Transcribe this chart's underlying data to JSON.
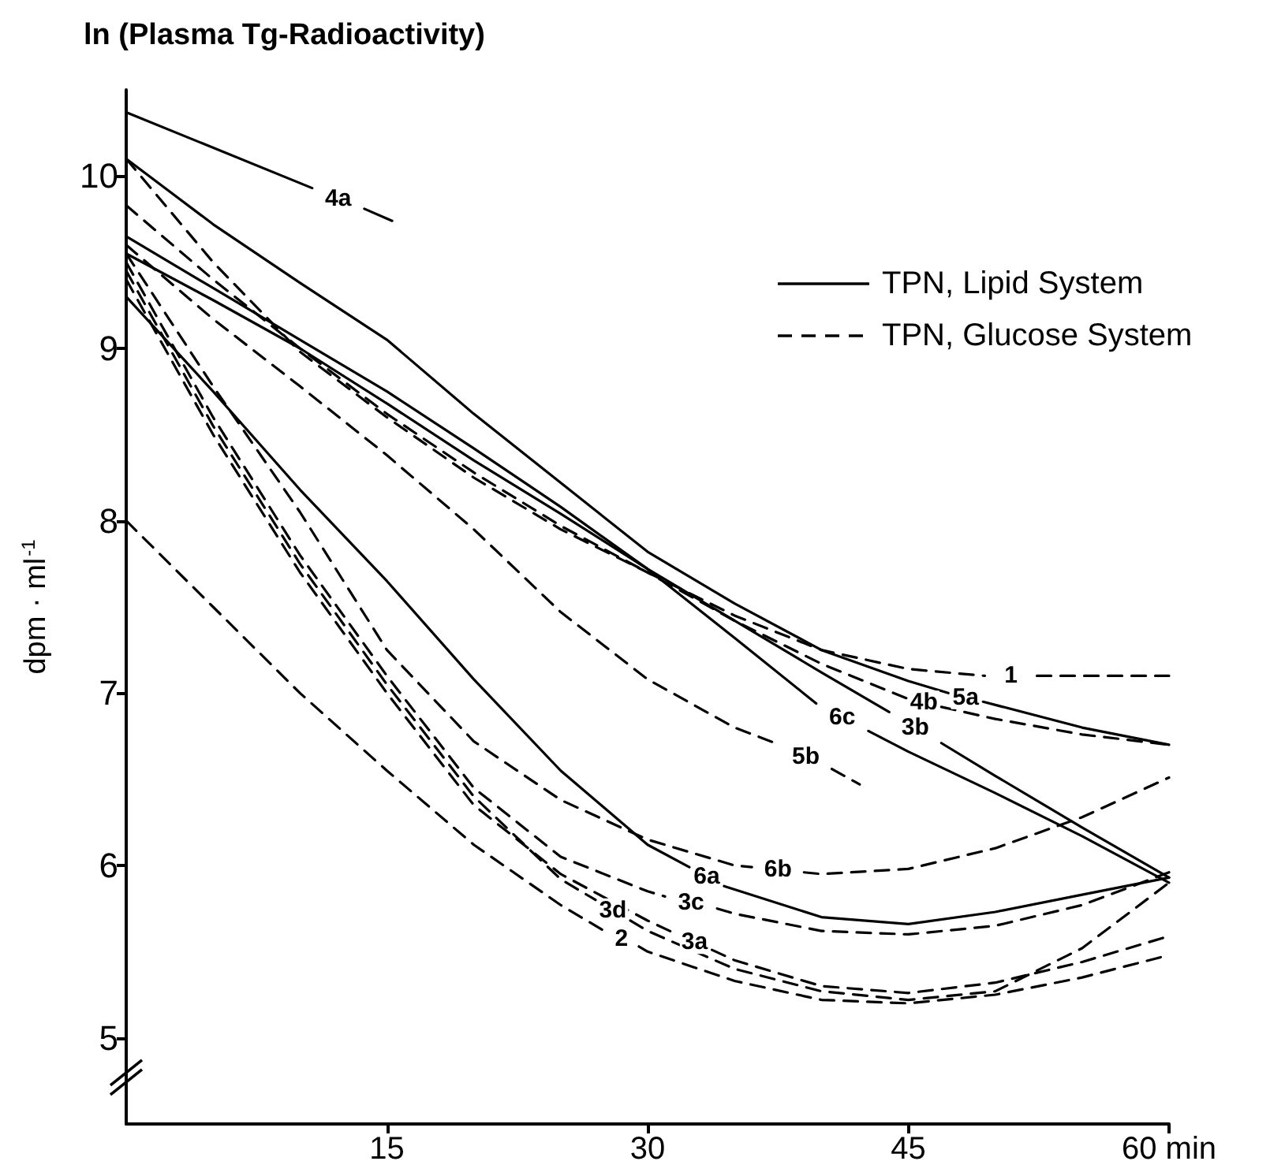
{
  "chart_data": {
    "type": "line",
    "title": "ln (Plasma Tg-Radioactivity)",
    "ylabel": "dpm · ml$^{-1}$",
    "xlim": [
      0,
      60
    ],
    "xticks": [
      15,
      30,
      45,
      {
        "value": 60,
        "label": "60 min"
      }
    ],
    "ylim": [
      4.5,
      10.5
    ],
    "yticks": [
      5,
      6,
      7,
      8,
      9,
      10
    ],
    "legend": "top right",
    "marker": "none",
    "series": [
      {
        "name": "4a",
        "color": "#000000",
        "line_style": "solid",
        "x": [
          0,
          10.7,
          12.2,
          13.7,
          15.3
        ],
        "values": [
          10.37,
          9.93,
          null,
          9.81,
          9.74
        ]
      },
      {
        "name": "5a",
        "color": "#000000",
        "line_style": "solid",
        "x": [
          0,
          5,
          10,
          15,
          20,
          25,
          30,
          35,
          40,
          45,
          47.3,
          48.3,
          49.3,
          55,
          60
        ],
        "values": [
          10.1,
          9.72,
          9.38,
          9.05,
          8.62,
          8.22,
          7.82,
          7.52,
          7.25,
          7.07,
          7.0,
          null,
          6.95,
          6.8,
          6.7
        ]
      },
      {
        "name": "4b",
        "color": "#000000",
        "line_style": "dashed",
        "x": [
          0,
          5,
          10,
          15,
          20,
          25,
          30,
          35,
          40,
          44.9,
          45.9,
          46.9,
          50,
          55,
          60
        ],
        "values": [
          10.1,
          9.5,
          8.98,
          8.6,
          8.25,
          7.95,
          7.7,
          7.42,
          7.17,
          6.97,
          null,
          6.92,
          6.85,
          6.76,
          6.7
        ]
      },
      {
        "name": "1",
        "color": "#000000",
        "line_style": "dashed",
        "x": [
          0,
          5,
          10,
          15,
          20,
          25,
          30,
          35,
          40,
          45,
          49.4,
          50.9,
          52.4,
          55,
          60
        ],
        "values": [
          9.83,
          9.4,
          9.0,
          8.62,
          8.28,
          7.97,
          7.7,
          7.45,
          7.25,
          7.14,
          7.1,
          null,
          7.1,
          7.1,
          7.1
        ]
      },
      {
        "name": "6c",
        "color": "#000000",
        "line_style": "solid",
        "x": [
          0,
          5,
          10,
          15,
          20,
          25,
          30,
          35,
          39.7,
          41.2,
          42.7,
          45,
          50,
          55,
          60
        ],
        "values": [
          9.65,
          9.35,
          9.05,
          8.75,
          8.42,
          8.08,
          7.72,
          7.32,
          6.94,
          null,
          6.78,
          6.66,
          6.42,
          6.17,
          5.9
        ]
      },
      {
        "name": "3b",
        "color": "#000000",
        "line_style": "solid",
        "x": [
          0,
          5,
          10,
          15,
          20,
          25,
          30,
          35,
          40,
          43.9,
          45.4,
          46.9,
          50,
          55,
          60
        ],
        "values": [
          9.55,
          9.28,
          9.0,
          8.68,
          8.35,
          8.04,
          7.72,
          7.42,
          7.12,
          6.89,
          null,
          6.71,
          6.52,
          6.22,
          5.93
        ]
      },
      {
        "name": "5b",
        "color": "#000000",
        "line_style": "dashed",
        "x": [
          0,
          5,
          10,
          15,
          20,
          25,
          30,
          35,
          37.6,
          39.1,
          40.6,
          42.2
        ],
        "values": [
          9.6,
          9.17,
          8.78,
          8.38,
          7.95,
          7.47,
          7.08,
          6.8,
          6.7,
          null,
          6.56,
          6.47
        ]
      },
      {
        "name": "6a",
        "color": "#000000",
        "line_style": "solid",
        "x": [
          0,
          5,
          10,
          15,
          20,
          25,
          30,
          32.4,
          33.4,
          34.4,
          40,
          45,
          50,
          55,
          60
        ],
        "values": [
          9.3,
          8.75,
          8.18,
          7.65,
          7.08,
          6.55,
          6.12,
          5.99,
          null,
          5.88,
          5.7,
          5.66,
          5.73,
          5.83,
          5.93
        ]
      },
      {
        "name": "6b",
        "color": "#000000",
        "line_style": "dashed",
        "x": [
          0,
          5,
          10,
          15,
          20,
          25,
          30,
          35,
          36,
          37.5,
          39,
          40,
          45,
          50,
          55,
          60
        ],
        "values": [
          9.55,
          8.78,
          8.05,
          7.25,
          6.72,
          6.38,
          6.15,
          6.0,
          5.99,
          null,
          5.96,
          5.95,
          5.98,
          6.1,
          6.28,
          6.51
        ]
      },
      {
        "name": "3c",
        "color": "#000000",
        "line_style": "dashed",
        "x": [
          0,
          5,
          10,
          15,
          20,
          25,
          30,
          31,
          32.5,
          34,
          35,
          40,
          45,
          50,
          55,
          60
        ],
        "values": [
          9.5,
          8.6,
          7.8,
          7.1,
          6.45,
          6.05,
          5.85,
          5.82,
          null,
          5.75,
          5.72,
          5.62,
          5.6,
          5.65,
          5.77,
          5.96
        ]
      },
      {
        "name": "3d",
        "color": "#000000",
        "line_style": "dashed",
        "x": [
          0,
          5,
          10,
          15,
          20,
          25,
          27,
          28,
          29,
          30,
          35,
          40,
          45,
          50,
          55,
          60
        ],
        "values": [
          9.45,
          8.55,
          7.75,
          7.05,
          6.4,
          5.92,
          5.8,
          null,
          5.68,
          5.62,
          5.4,
          5.27,
          5.22,
          5.27,
          5.52,
          5.9
        ]
      },
      {
        "name": "3a",
        "color": "#000000",
        "line_style": "dashed",
        "x": [
          0,
          5,
          10,
          15,
          20,
          25,
          30,
          31.7,
          32.7,
          33.7,
          35,
          40,
          45,
          50,
          55,
          60
        ],
        "values": [
          9.4,
          8.5,
          7.7,
          7.0,
          6.35,
          5.95,
          5.68,
          5.6,
          null,
          5.51,
          5.45,
          5.3,
          5.26,
          5.32,
          5.44,
          5.59
        ]
      },
      {
        "name": "2",
        "color": "#000000",
        "line_style": "dashed",
        "x": [
          0,
          5,
          10,
          15,
          20,
          25,
          27.5,
          28.5,
          29.5,
          30,
          35,
          40,
          45,
          50,
          55,
          60
        ],
        "values": [
          8.0,
          7.5,
          7.0,
          6.55,
          6.12,
          5.77,
          5.62,
          null,
          5.53,
          5.5,
          5.33,
          5.22,
          5.2,
          5.25,
          5.35,
          5.48
        ]
      }
    ],
    "annotations": [
      "TPN, Lipid System",
      "TPN, Glucose System"
    ]
  }
}
